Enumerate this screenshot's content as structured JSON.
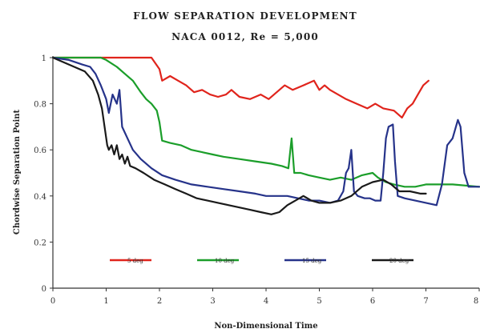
{
  "chart_data": {
    "type": "line",
    "title": "FLOW SEPARATION DEVELOPMENT",
    "subtitle": "NACA 0012, Re = 5,000",
    "xlabel": "Non-Dimensional Time",
    "ylabel": "Chordwise Separation Point",
    "xlim": [
      0,
      8
    ],
    "ylim": [
      0,
      1
    ],
    "x_ticks": [
      "0",
      "1",
      "2",
      "3",
      "4",
      "5",
      "6",
      "7",
      "8"
    ],
    "y_ticks": [
      "0",
      "0.2",
      "0.4",
      "0.6",
      "0.8",
      "1"
    ],
    "legend_position": "bottom-center",
    "series": [
      {
        "name": "5 deg",
        "color": "#e0241c",
        "points": [
          [
            0,
            1
          ],
          [
            0.5,
            1
          ],
          [
            1.0,
            1
          ],
          [
            1.5,
            1
          ],
          [
            1.85,
            1
          ],
          [
            2.0,
            0.95
          ],
          [
            2.05,
            0.9
          ],
          [
            2.2,
            0.92
          ],
          [
            2.35,
            0.9
          ],
          [
            2.5,
            0.88
          ],
          [
            2.65,
            0.85
          ],
          [
            2.8,
            0.86
          ],
          [
            2.95,
            0.84
          ],
          [
            3.1,
            0.83
          ],
          [
            3.25,
            0.84
          ],
          [
            3.35,
            0.86
          ],
          [
            3.5,
            0.83
          ],
          [
            3.7,
            0.82
          ],
          [
            3.9,
            0.84
          ],
          [
            4.05,
            0.82
          ],
          [
            4.2,
            0.85
          ],
          [
            4.35,
            0.88
          ],
          [
            4.5,
            0.86
          ],
          [
            4.7,
            0.88
          ],
          [
            4.9,
            0.9
          ],
          [
            5.0,
            0.86
          ],
          [
            5.1,
            0.88
          ],
          [
            5.2,
            0.86
          ],
          [
            5.35,
            0.84
          ],
          [
            5.5,
            0.82
          ],
          [
            5.7,
            0.8
          ],
          [
            5.9,
            0.78
          ],
          [
            6.05,
            0.8
          ],
          [
            6.2,
            0.78
          ],
          [
            6.4,
            0.77
          ],
          [
            6.55,
            0.74
          ],
          [
            6.65,
            0.78
          ],
          [
            6.75,
            0.8
          ],
          [
            6.85,
            0.84
          ],
          [
            6.95,
            0.88
          ],
          [
            7.0,
            0.89
          ],
          [
            7.05,
            0.9
          ]
        ]
      },
      {
        "name": "10 deg",
        "color": "#1b9e2a",
        "points": [
          [
            0,
            1
          ],
          [
            0.5,
            1
          ],
          [
            0.9,
            1
          ],
          [
            1.0,
            0.99
          ],
          [
            1.2,
            0.96
          ],
          [
            1.35,
            0.93
          ],
          [
            1.5,
            0.9
          ],
          [
            1.65,
            0.85
          ],
          [
            1.75,
            0.82
          ],
          [
            1.85,
            0.8
          ],
          [
            1.95,
            0.77
          ],
          [
            2.0,
            0.72
          ],
          [
            2.05,
            0.64
          ],
          [
            2.2,
            0.63
          ],
          [
            2.4,
            0.62
          ],
          [
            2.6,
            0.6
          ],
          [
            2.8,
            0.59
          ],
          [
            3.0,
            0.58
          ],
          [
            3.2,
            0.57
          ],
          [
            3.5,
            0.56
          ],
          [
            3.8,
            0.55
          ],
          [
            4.1,
            0.54
          ],
          [
            4.3,
            0.53
          ],
          [
            4.42,
            0.52
          ],
          [
            4.48,
            0.65
          ],
          [
            4.53,
            0.5
          ],
          [
            4.65,
            0.5
          ],
          [
            4.8,
            0.49
          ],
          [
            5.0,
            0.48
          ],
          [
            5.2,
            0.47
          ],
          [
            5.4,
            0.48
          ],
          [
            5.6,
            0.47
          ],
          [
            5.8,
            0.49
          ],
          [
            6.0,
            0.5
          ],
          [
            6.1,
            0.48
          ],
          [
            6.25,
            0.46
          ],
          [
            6.4,
            0.45
          ],
          [
            6.6,
            0.44
          ],
          [
            6.8,
            0.44
          ],
          [
            7.0,
            0.45
          ],
          [
            7.5,
            0.45
          ],
          [
            8.0,
            0.44
          ]
        ]
      },
      {
        "name": "15 deg",
        "color": "#26338a",
        "points": [
          [
            0,
            1
          ],
          [
            0.3,
            0.99
          ],
          [
            0.55,
            0.97
          ],
          [
            0.7,
            0.96
          ],
          [
            0.8,
            0.93
          ],
          [
            0.9,
            0.88
          ],
          [
            1.0,
            0.82
          ],
          [
            1.05,
            0.76
          ],
          [
            1.12,
            0.84
          ],
          [
            1.2,
            0.8
          ],
          [
            1.25,
            0.86
          ],
          [
            1.3,
            0.7
          ],
          [
            1.4,
            0.65
          ],
          [
            1.5,
            0.6
          ],
          [
            1.65,
            0.56
          ],
          [
            1.85,
            0.52
          ],
          [
            2.05,
            0.49
          ],
          [
            2.3,
            0.47
          ],
          [
            2.6,
            0.45
          ],
          [
            2.9,
            0.44
          ],
          [
            3.2,
            0.43
          ],
          [
            3.5,
            0.42
          ],
          [
            3.8,
            0.41
          ],
          [
            4.0,
            0.4
          ],
          [
            4.2,
            0.4
          ],
          [
            4.4,
            0.4
          ],
          [
            4.6,
            0.39
          ],
          [
            4.8,
            0.38
          ],
          [
            5.0,
            0.38
          ],
          [
            5.2,
            0.37
          ],
          [
            5.35,
            0.38
          ],
          [
            5.45,
            0.42
          ],
          [
            5.5,
            0.5
          ],
          [
            5.55,
            0.52
          ],
          [
            5.6,
            0.6
          ],
          [
            5.65,
            0.42
          ],
          [
            5.72,
            0.4
          ],
          [
            5.85,
            0.39
          ],
          [
            5.95,
            0.39
          ],
          [
            6.05,
            0.38
          ],
          [
            6.15,
            0.38
          ],
          [
            6.2,
            0.5
          ],
          [
            6.25,
            0.65
          ],
          [
            6.3,
            0.7
          ],
          [
            6.38,
            0.71
          ],
          [
            6.42,
            0.55
          ],
          [
            6.47,
            0.4
          ],
          [
            6.6,
            0.39
          ],
          [
            6.8,
            0.38
          ],
          [
            7.0,
            0.37
          ],
          [
            7.2,
            0.36
          ],
          [
            7.3,
            0.45
          ],
          [
            7.4,
            0.62
          ],
          [
            7.5,
            0.65
          ],
          [
            7.6,
            0.73
          ],
          [
            7.65,
            0.7
          ],
          [
            7.72,
            0.5
          ],
          [
            7.8,
            0.44
          ],
          [
            8.0,
            0.44
          ]
        ]
      },
      {
        "name": "20 deg",
        "color": "#1a1a1a",
        "points": [
          [
            0,
            1
          ],
          [
            0.2,
            0.98
          ],
          [
            0.4,
            0.96
          ],
          [
            0.6,
            0.94
          ],
          [
            0.75,
            0.9
          ],
          [
            0.85,
            0.84
          ],
          [
            0.92,
            0.78
          ],
          [
            0.97,
            0.7
          ],
          [
            1.02,
            0.62
          ],
          [
            1.05,
            0.6
          ],
          [
            1.1,
            0.62
          ],
          [
            1.15,
            0.58
          ],
          [
            1.2,
            0.62
          ],
          [
            1.25,
            0.56
          ],
          [
            1.3,
            0.58
          ],
          [
            1.35,
            0.54
          ],
          [
            1.4,
            0.57
          ],
          [
            1.45,
            0.53
          ],
          [
            1.55,
            0.52
          ],
          [
            1.7,
            0.5
          ],
          [
            1.9,
            0.47
          ],
          [
            2.1,
            0.45
          ],
          [
            2.3,
            0.43
          ],
          [
            2.5,
            0.41
          ],
          [
            2.7,
            0.39
          ],
          [
            2.9,
            0.38
          ],
          [
            3.1,
            0.37
          ],
          [
            3.3,
            0.36
          ],
          [
            3.5,
            0.35
          ],
          [
            3.7,
            0.34
          ],
          [
            3.9,
            0.33
          ],
          [
            4.1,
            0.32
          ],
          [
            4.25,
            0.33
          ],
          [
            4.4,
            0.36
          ],
          [
            4.55,
            0.38
          ],
          [
            4.7,
            0.4
          ],
          [
            4.85,
            0.38
          ],
          [
            5.0,
            0.37
          ],
          [
            5.2,
            0.37
          ],
          [
            5.4,
            0.38
          ],
          [
            5.6,
            0.4
          ],
          [
            5.8,
            0.44
          ],
          [
            6.0,
            0.46
          ],
          [
            6.2,
            0.47
          ],
          [
            6.35,
            0.45
          ],
          [
            6.5,
            0.42
          ],
          [
            6.7,
            0.42
          ],
          [
            6.9,
            0.41
          ],
          [
            7.0,
            0.41
          ]
        ]
      }
    ]
  }
}
